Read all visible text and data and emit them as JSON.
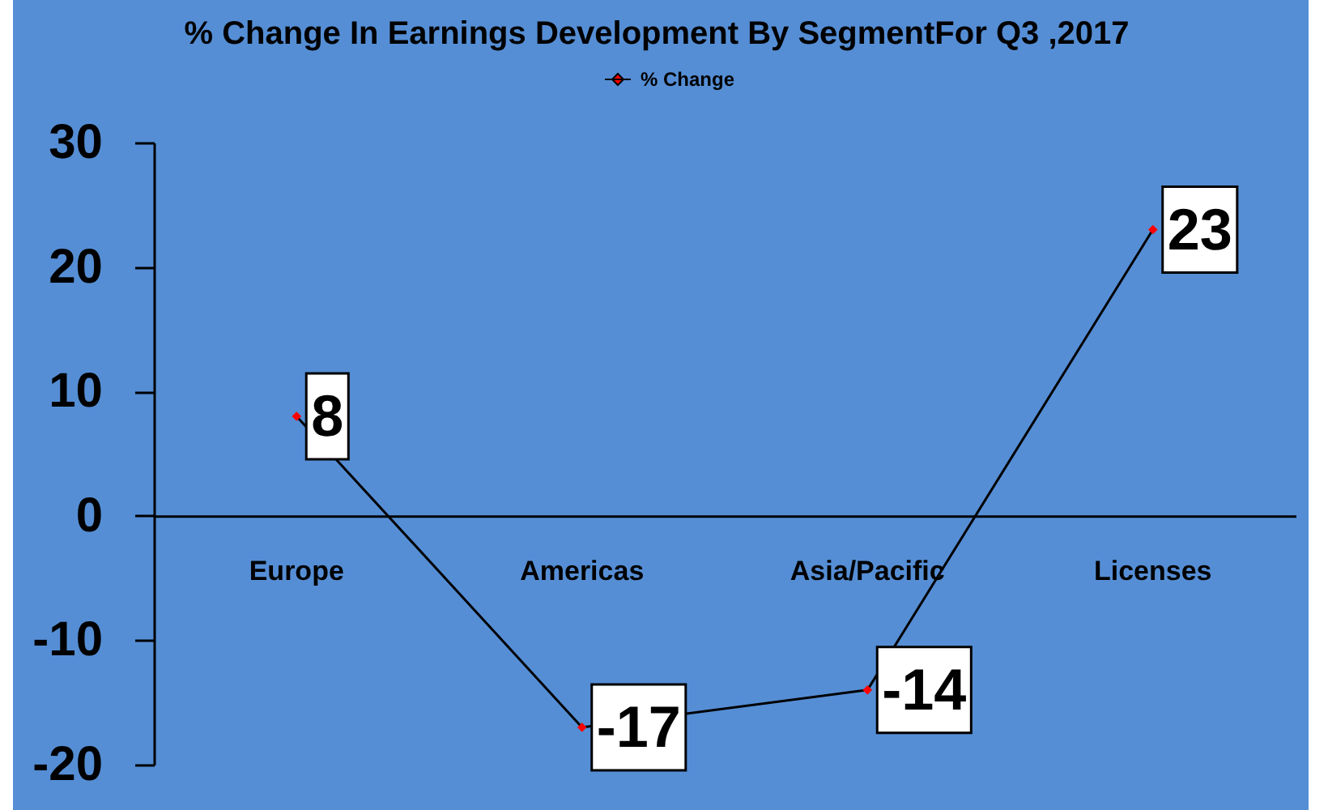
{
  "chart_data": {
    "type": "line",
    "title": "% Change In Earnings Development By SegmentFor Q3 ,2017",
    "categories": [
      "Europe",
      "Americas",
      "Asia/Pacific",
      "Licenses"
    ],
    "series": [
      {
        "name": "% Change",
        "color": "#000000",
        "values": [
          8,
          -17,
          -14,
          23
        ]
      }
    ],
    "ylim": [
      -20,
      30
    ],
    "yticks": [
      -20,
      -10,
      0,
      10,
      20,
      30
    ],
    "grid": false,
    "legend": "top",
    "marker": "diamond",
    "line_style": "solid",
    "data_labels": true
  }
}
